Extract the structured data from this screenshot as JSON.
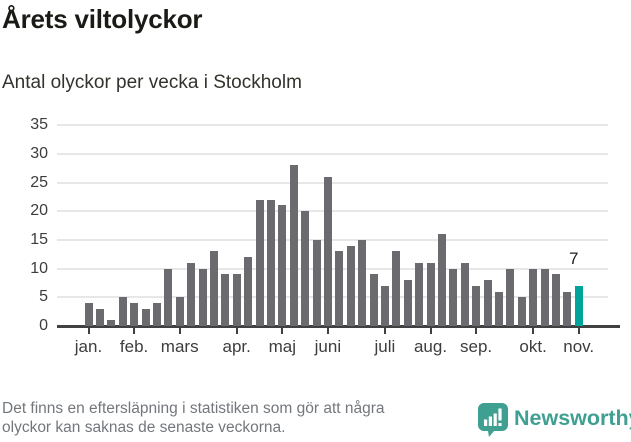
{
  "chart_data": {
    "type": "bar",
    "title": "Årets viltolyckor",
    "subtitle": "Antal olyckor per vecka i Stockholm",
    "xlabel": "",
    "ylabel": "",
    "ylim": [
      0,
      35
    ],
    "y_ticks": [
      0,
      5,
      10,
      15,
      20,
      25,
      30,
      35
    ],
    "grid": "horizontal",
    "legend": "none",
    "values": [
      4,
      3,
      1,
      5,
      4,
      3,
      4,
      10,
      5,
      11,
      10,
      13,
      9,
      9,
      12,
      22,
      22,
      21,
      28,
      20,
      15,
      26,
      13,
      14,
      15,
      9,
      7,
      13,
      8,
      11,
      11,
      16,
      10,
      11,
      7,
      8,
      6,
      10,
      5,
      10,
      10,
      9,
      6,
      7
    ],
    "highlight_index": 43,
    "highlight_label": "7",
    "month_ticks": [
      {
        "label": "jan.",
        "bar": 0
      },
      {
        "label": "feb.",
        "bar": 4
      },
      {
        "label": "mars",
        "bar": 8
      },
      {
        "label": "apr.",
        "bar": 13
      },
      {
        "label": "maj",
        "bar": 17
      },
      {
        "label": "juni",
        "bar": 21
      },
      {
        "label": "juli",
        "bar": 26
      },
      {
        "label": "aug.",
        "bar": 30
      },
      {
        "label": "sep.",
        "bar": 34
      },
      {
        "label": "okt.",
        "bar": 39
      },
      {
        "label": "nov.",
        "bar": 43
      }
    ],
    "colors": {
      "bar": "#6b6b6f",
      "highlight": "#00a49b",
      "gridline": "#e7e7e7",
      "axis": "#414141"
    }
  },
  "footer": {
    "note_line1": "Det finns en eftersläpning i statistiken som gör att några",
    "note_line2": "olyckor kan saknas de senaste veckorna.",
    "brand": "Newsworthy",
    "brand_color": "#3fa092"
  }
}
